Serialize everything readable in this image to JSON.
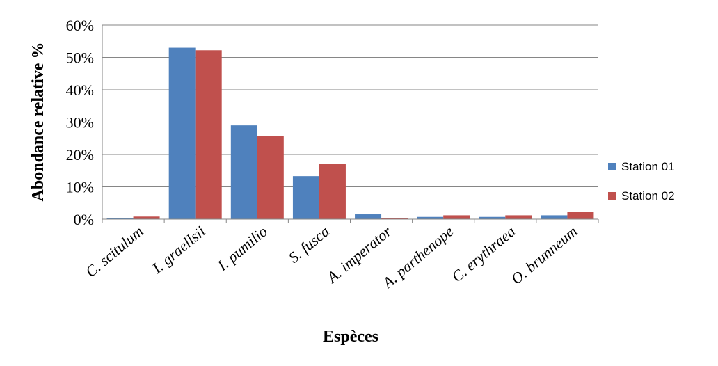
{
  "chart_data": {
    "type": "bar",
    "title": "",
    "xlabel": "Espèces",
    "ylabel": "Abondance relative %",
    "ylim": [
      0,
      60
    ],
    "yticks": [
      0,
      10,
      20,
      30,
      40,
      50,
      60
    ],
    "ytick_labels": [
      "0%",
      "10%",
      "20%",
      "30%",
      "40%",
      "50%",
      "60%"
    ],
    "grid": true,
    "legend_position": "right",
    "categories": [
      "C. scitulum",
      "I. graellsii",
      "I. pumilio",
      "S. fusca",
      "A. imperator",
      "A. parthenope",
      "C. erythraea",
      "O. brunneum"
    ],
    "series": [
      {
        "name": "Station 01",
        "color": "#4F81BD",
        "values": [
          0.2,
          53,
          29,
          13.3,
          1.5,
          0.7,
          0.7,
          1.2
        ]
      },
      {
        "name": "Station 02",
        "color": "#C0504D",
        "values": [
          0.8,
          52.2,
          25.8,
          17,
          0.3,
          1.2,
          1.2,
          2.3
        ]
      }
    ]
  }
}
